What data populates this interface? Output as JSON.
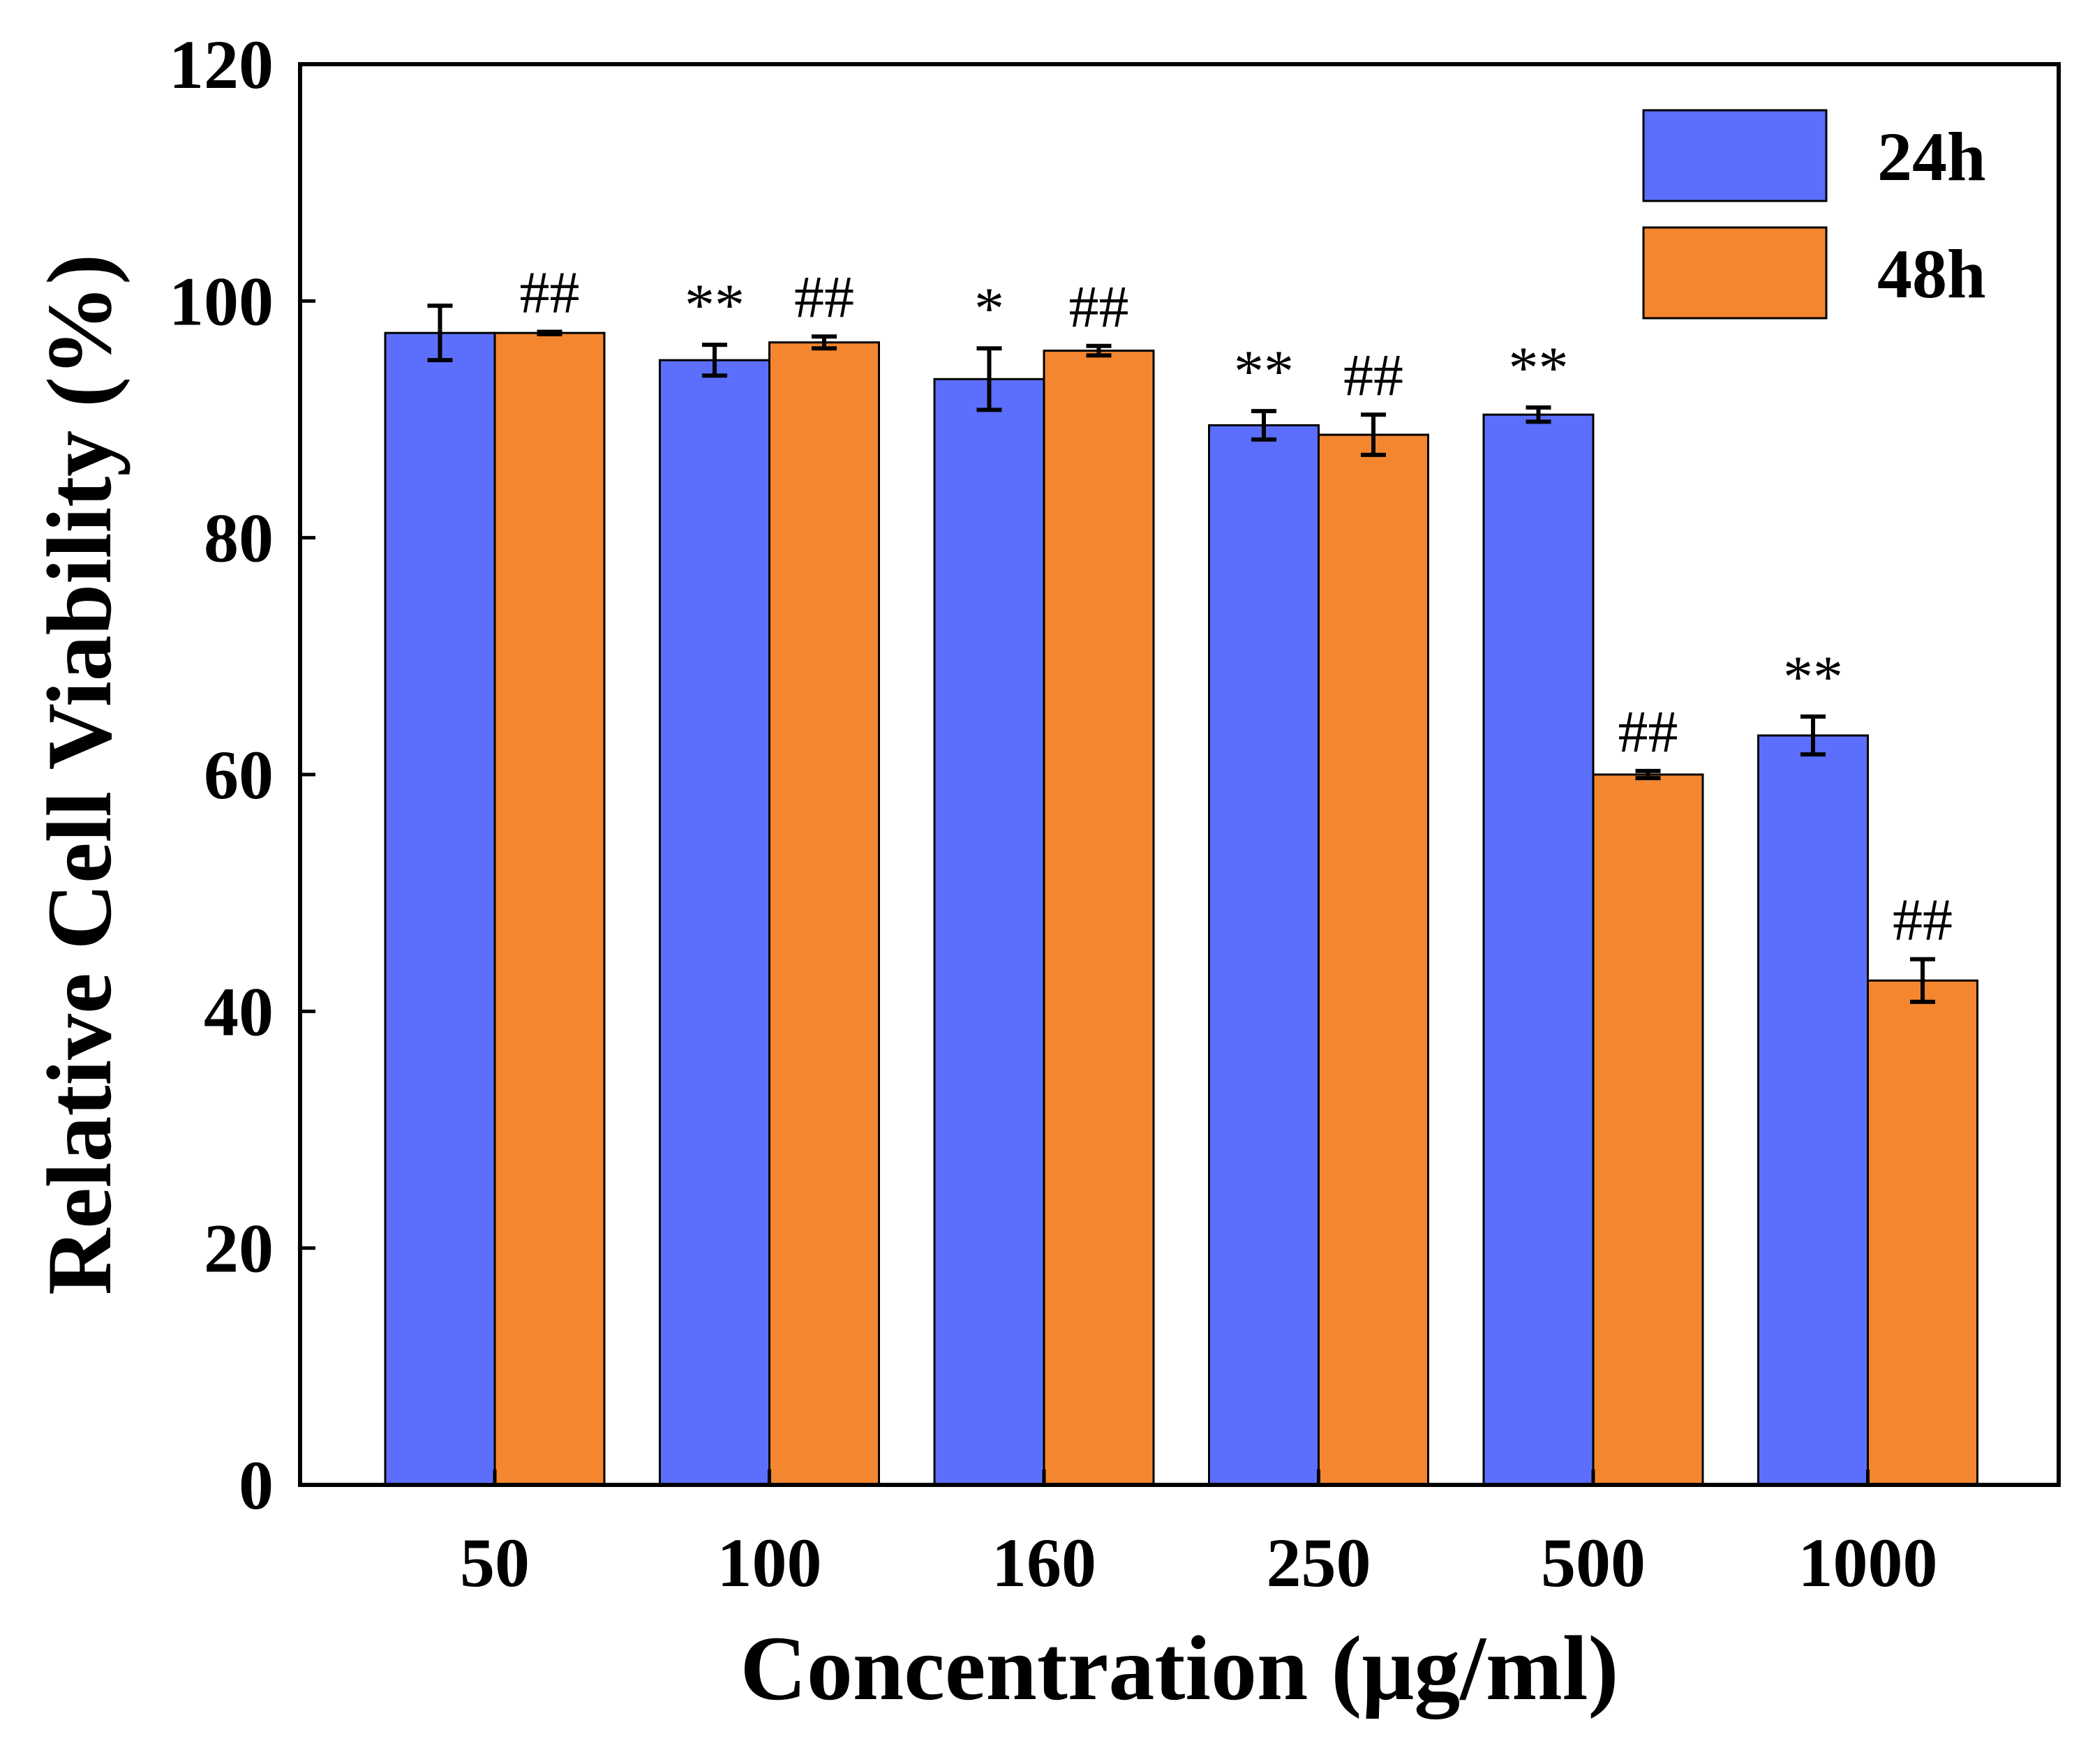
{
  "chart_data": {
    "type": "bar",
    "title": "",
    "xlabel": "Concentration (μg/ml)",
    "ylabel": "Relative Cell Viability (%)",
    "ylim": [
      0,
      120
    ],
    "yticks": [
      0,
      20,
      40,
      60,
      80,
      100,
      120
    ],
    "categories": [
      "50",
      "100",
      "160",
      "250",
      "500",
      "1000"
    ],
    "legend_position": "top-right",
    "grid": false,
    "series": [
      {
        "name": "24h",
        "color": "#5b6ffc",
        "values": [
          97.3,
          95.0,
          93.4,
          89.5,
          90.4,
          63.3
        ],
        "errors": [
          2.3,
          1.3,
          2.6,
          1.2,
          0.6,
          1.6
        ],
        "annotations": [
          "",
          "**",
          "*",
          "**",
          "**",
          "**"
        ]
      },
      {
        "name": "48h",
        "color": "#f48630",
        "values": [
          97.3,
          96.5,
          95.8,
          88.7,
          60.0,
          42.6
        ],
        "errors": [
          0.1,
          0.5,
          0.4,
          1.7,
          0.3,
          1.8
        ],
        "annotations": [
          "##",
          "##",
          "##",
          "##",
          "##",
          "##"
        ]
      }
    ]
  }
}
